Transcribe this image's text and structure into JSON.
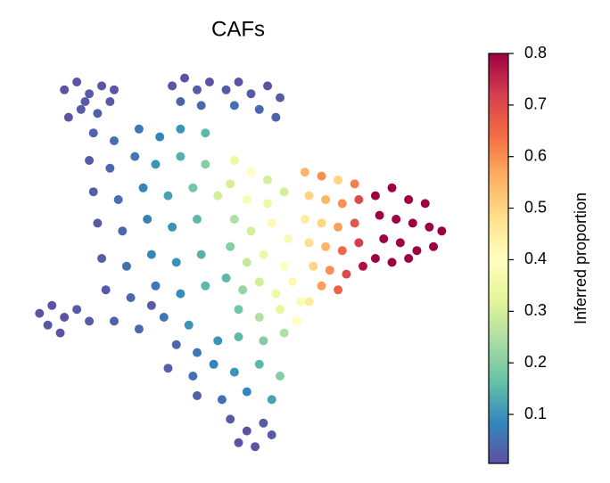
{
  "chart_data": {
    "type": "scatter",
    "title": "CAFs",
    "colorbar_label": "Inferred proportion",
    "colormap": "Spectral_r",
    "xlim": [
      0,
      10
    ],
    "ylim": [
      0,
      10
    ],
    "clim": [
      0.005,
      0.8
    ],
    "cticks": [
      0.1,
      0.2,
      0.3,
      0.4,
      0.5,
      0.6,
      0.7,
      0.8
    ],
    "x": [
      0.8,
      1.1,
      1.4,
      1.7,
      1.9,
      1.2,
      0.9,
      1.6,
      2.0,
      1.3,
      3.4,
      3.7,
      4.0,
      4.3,
      3.6,
      4.1,
      4.7,
      5.0,
      5.3,
      5.7,
      6.0,
      5.5,
      4.9,
      5.9,
      1.5,
      2.0,
      2.6,
      3.1,
      3.6,
      4.2,
      1.4,
      1.9,
      2.5,
      3.0,
      3.6,
      4.2,
      1.5,
      2.1,
      2.7,
      3.3,
      3.9,
      4.5,
      1.6,
      2.2,
      2.8,
      3.4,
      4.0,
      1.7,
      2.3,
      2.9,
      3.5,
      4.1,
      1.8,
      2.4,
      3.0,
      3.6,
      4.2,
      2.0,
      2.6,
      3.2,
      3.8,
      0.2,
      0.5,
      0.4,
      0.8,
      1.1,
      1.4,
      0.7,
      2.9,
      4.9,
      5.3,
      5.7,
      4.8,
      5.2,
      5.7,
      6.1,
      4.9,
      5.3,
      5.8,
      6.2,
      4.8,
      5.2,
      5.6,
      6.1,
      4.7,
      5.1,
      5.5,
      5.9,
      6.3,
      5.0,
      5.5,
      6.0,
      6.5,
      3.5,
      4.0,
      4.5,
      5.0,
      5.6,
      6.1,
      3.3,
      3.9,
      4.4,
      4.9,
      5.5,
      6.0,
      4.0,
      4.6,
      5.2,
      5.8,
      4.8,
      5.2,
      5.6,
      5.0,
      5.4,
      5.8,
      6.6,
      7.0,
      7.4,
      7.8,
      6.7,
      7.1,
      7.5,
      7.9,
      6.6,
      7.0,
      7.4,
      7.8,
      6.7,
      7.1,
      7.5,
      7.9,
      6.8,
      7.2,
      7.6,
      8.0,
      7.0,
      7.4,
      6.4,
      6.7,
      8.3,
      8.7,
      9.1,
      9.5,
      8.4,
      8.8,
      9.2,
      9.6,
      9.9,
      8.5,
      8.9,
      9.3,
      9.7,
      8.3,
      8.7,
      9.1
    ],
    "y": [
      9.3,
      9.5,
      9.2,
      9.4,
      9.0,
      8.8,
      8.6,
      8.7,
      9.3,
      9.0,
      9.4,
      9.6,
      9.3,
      9.5,
      9.0,
      8.9,
      9.3,
      9.5,
      9.2,
      9.4,
      9.1,
      8.8,
      8.9,
      8.6,
      8.2,
      8.0,
      8.3,
      8.1,
      8.3,
      8.2,
      7.5,
      7.3,
      7.6,
      7.4,
      7.6,
      7.4,
      6.7,
      6.5,
      6.8,
      6.6,
      6.8,
      6.6,
      5.9,
      5.7,
      6.0,
      5.8,
      6.0,
      5.0,
      4.8,
      5.1,
      4.9,
      5.1,
      4.2,
      4.0,
      4.3,
      4.1,
      4.3,
      3.4,
      3.2,
      3.5,
      3.3,
      3.6,
      3.8,
      3.3,
      3.5,
      3.7,
      3.4,
      3.1,
      3.8,
      7.5,
      7.2,
      7.0,
      6.9,
      6.5,
      6.4,
      6.7,
      6.0,
      5.7,
      5.9,
      5.5,
      5.3,
      4.9,
      5.1,
      4.8,
      4.5,
      4.2,
      4.4,
      4.1,
      4.4,
      3.7,
      3.5,
      3.7,
      3.9,
      2.8,
      2.6,
      2.9,
      3.0,
      2.9,
      3.1,
      2.2,
      2.0,
      2.3,
      2.1,
      2.3,
      2.0,
      1.5,
      1.4,
      1.6,
      1.4,
      0.9,
      0.6,
      0.8,
      0.3,
      0.2,
      0.5,
      7.2,
      7.1,
      7.0,
      6.9,
      6.6,
      6.5,
      6.4,
      6.5,
      6.0,
      5.9,
      5.8,
      5.9,
      5.4,
      5.3,
      5.2,
      5.4,
      4.8,
      4.7,
      4.6,
      4.8,
      4.3,
      4.2,
      3.4,
      3.9,
      6.6,
      6.8,
      6.5,
      6.4,
      6.1,
      6.0,
      5.9,
      5.8,
      5.7,
      5.5,
      5.4,
      5.2,
      5.3,
      5.0,
      4.9,
      5.0
    ],
    "values": [
      0.01,
      0.01,
      0.02,
      0.01,
      0.02,
      0.02,
      0.01,
      0.03,
      0.01,
      0.02,
      0.01,
      0.01,
      0.02,
      0.01,
      0.03,
      0.04,
      0.02,
      0.01,
      0.02,
      0.01,
      0.02,
      0.04,
      0.05,
      0.03,
      0.03,
      0.05,
      0.06,
      0.08,
      0.1,
      0.15,
      0.02,
      0.04,
      0.06,
      0.1,
      0.14,
      0.2,
      0.03,
      0.05,
      0.08,
      0.12,
      0.18,
      0.3,
      0.02,
      0.04,
      0.07,
      0.1,
      0.15,
      0.03,
      0.05,
      0.08,
      0.1,
      0.14,
      0.02,
      0.04,
      0.06,
      0.09,
      0.15,
      0.03,
      0.04,
      0.06,
      0.1,
      0.01,
      0.01,
      0.02,
      0.01,
      0.02,
      0.02,
      0.01,
      0.02,
      0.35,
      0.4,
      0.3,
      0.3,
      0.38,
      0.35,
      0.3,
      0.25,
      0.3,
      0.42,
      0.38,
      0.2,
      0.28,
      0.35,
      0.4,
      0.15,
      0.22,
      0.3,
      0.35,
      0.42,
      0.18,
      0.25,
      0.33,
      0.38,
      0.04,
      0.06,
      0.1,
      0.15,
      0.2,
      0.25,
      0.03,
      0.05,
      0.08,
      0.1,
      0.15,
      0.2,
      0.03,
      0.05,
      0.08,
      0.12,
      0.02,
      0.01,
      0.02,
      0.01,
      0.01,
      0.02,
      0.55,
      0.6,
      0.5,
      0.62,
      0.5,
      0.55,
      0.6,
      0.7,
      0.45,
      0.5,
      0.58,
      0.68,
      0.48,
      0.55,
      0.65,
      0.72,
      0.5,
      0.6,
      0.7,
      0.78,
      0.58,
      0.66,
      0.4,
      0.45,
      0.8,
      0.8,
      0.8,
      0.8,
      0.8,
      0.8,
      0.8,
      0.8,
      0.8,
      0.8,
      0.8,
      0.8,
      0.8,
      0.8,
      0.8,
      0.8
    ]
  }
}
